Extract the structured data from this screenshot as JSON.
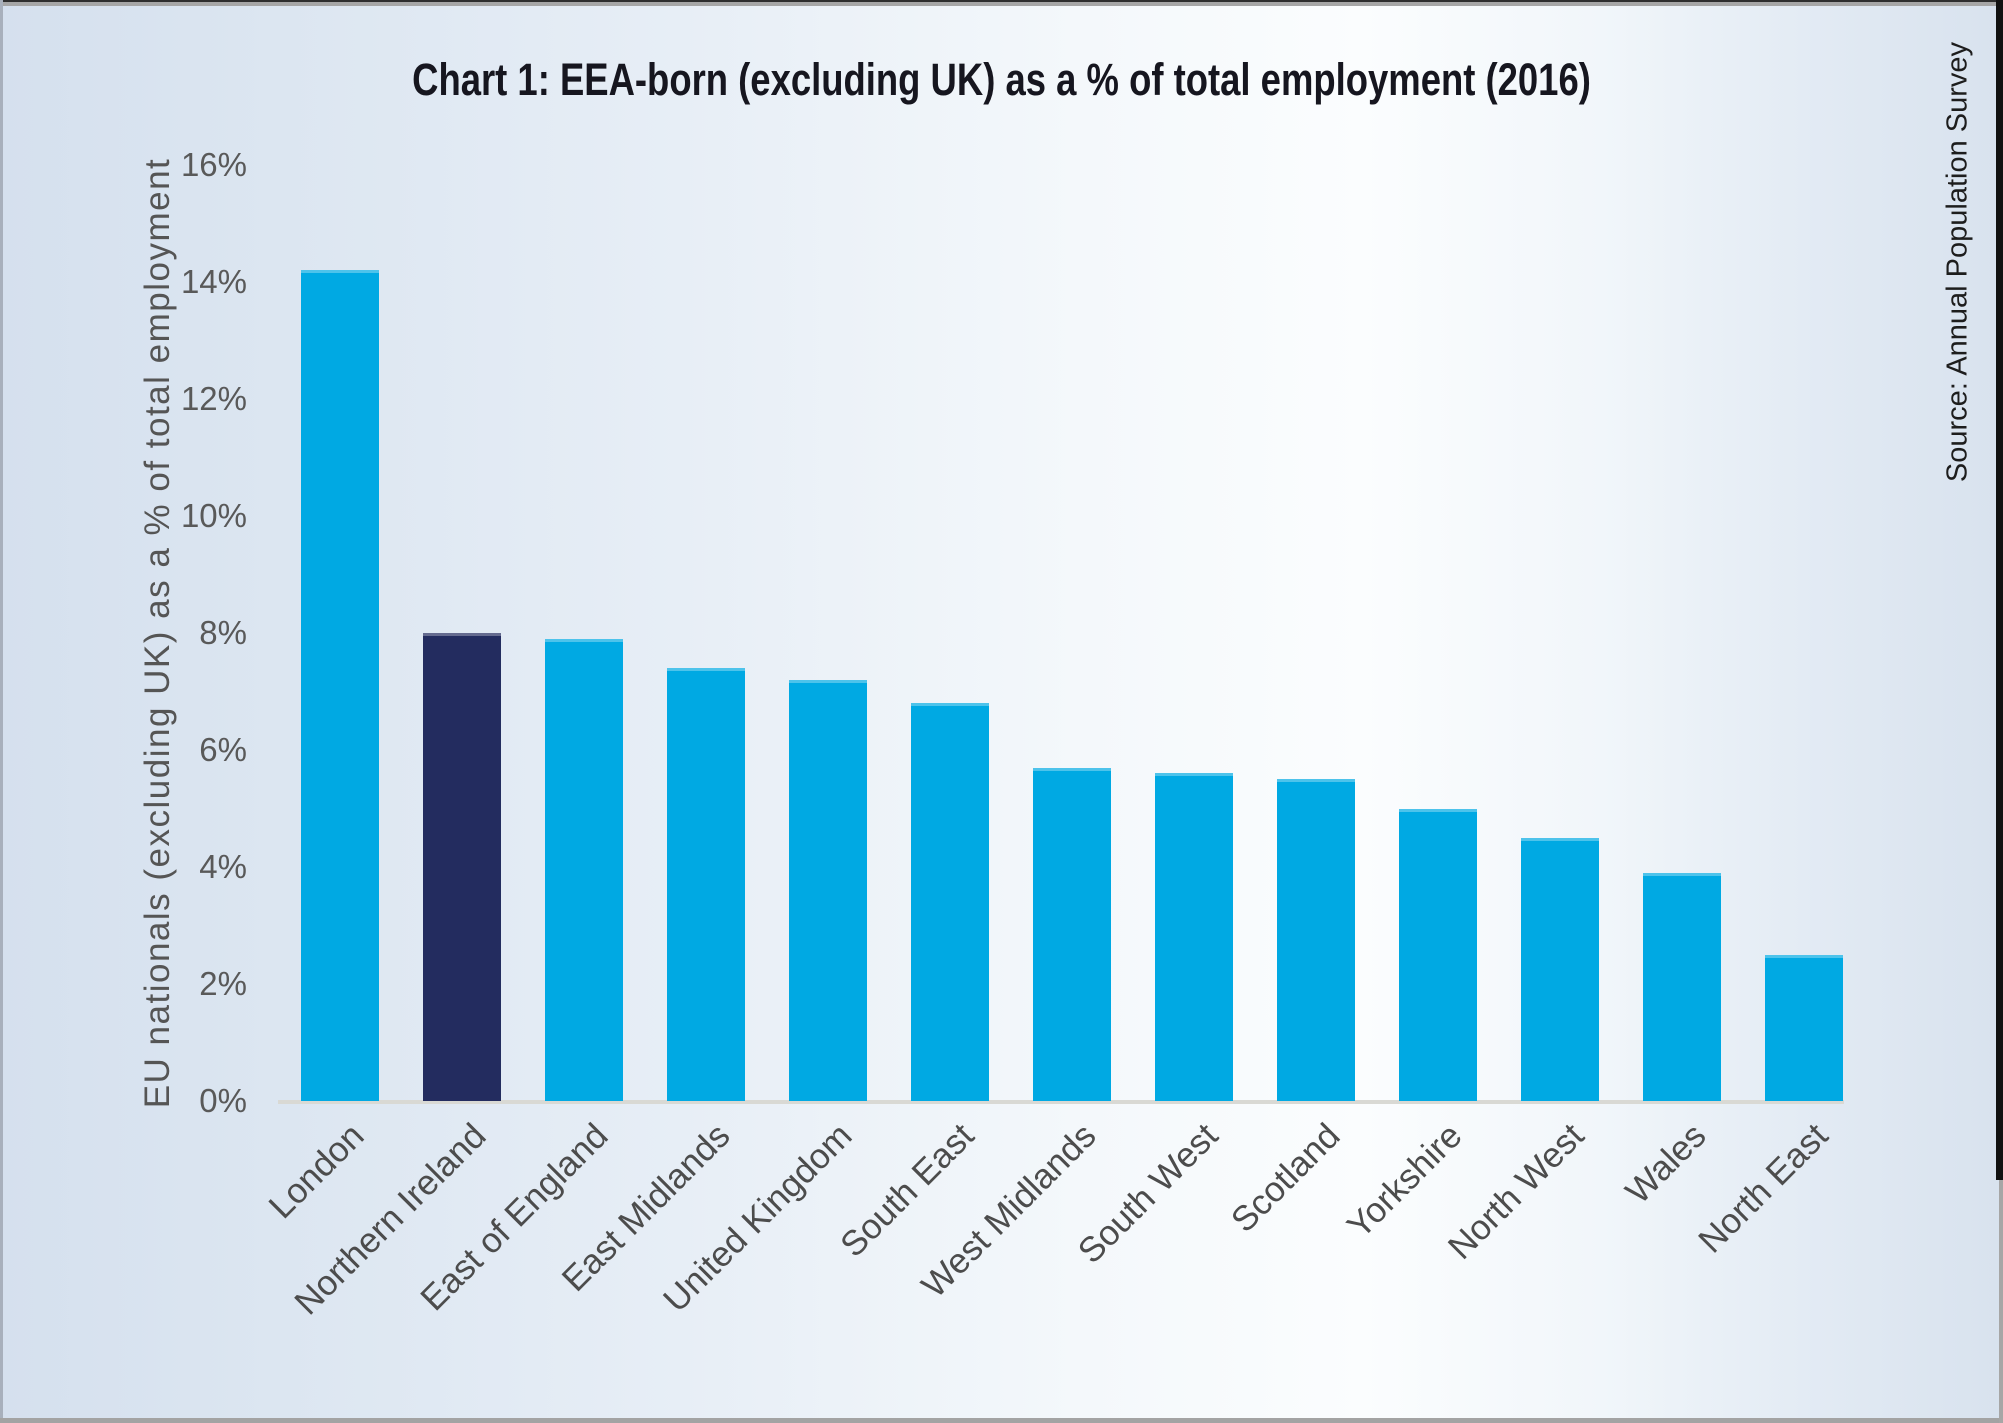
{
  "meta": {
    "source_note": "Source: Annual Population Survey"
  },
  "chart_data": {
    "type": "bar",
    "title": "Chart 1: EEA-born (excluding UK) as a % of total employment (2016)",
    "xlabel": "",
    "ylabel": "EU nationals (excluding UK) as a % of total employment",
    "categories": [
      "London",
      "Northern Ireland",
      "East of England",
      "East Midlands",
      "United Kingdom",
      "South East",
      "West Midlands",
      "South West",
      "Scotland",
      "Yorkshire",
      "North West",
      "Wales",
      "North East"
    ],
    "values": [
      14.2,
      8.0,
      7.9,
      7.4,
      7.2,
      6.8,
      5.7,
      5.6,
      5.5,
      5.0,
      4.5,
      3.9,
      2.5
    ],
    "unit": "%",
    "ylim": [
      0,
      16
    ],
    "ytick_step": 2,
    "ytick_labels": [
      "0%",
      "2%",
      "4%",
      "6%",
      "8%",
      "10%",
      "12%",
      "14%",
      "16%"
    ],
    "grid": false,
    "legend": null,
    "colors": {
      "bar": "#00A9E3",
      "highlight_bar": "#232C5F",
      "axis_line": "#d9d9d4"
    },
    "highlight_index": 1
  }
}
